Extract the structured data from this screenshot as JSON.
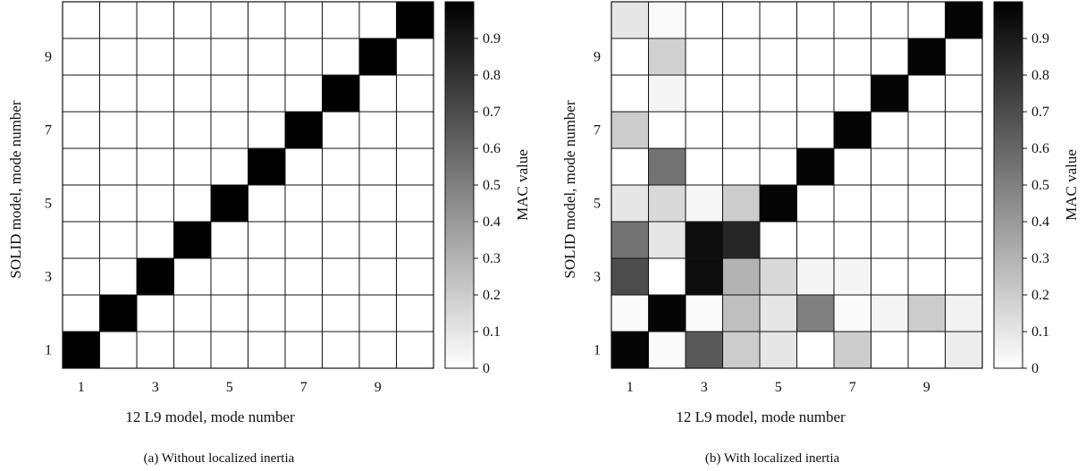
{
  "chart_data": [
    {
      "type": "heatmap",
      "caption": "(a)  Without localized inertia",
      "xlabel": "12 L9 model, mode number",
      "ylabel": "SOLID model, mode number",
      "colorbar_label": "MAC value",
      "x_tick_labels": [
        "1",
        "3",
        "5",
        "7",
        "9"
      ],
      "y_tick_labels": [
        "1",
        "3",
        "5",
        "7",
        "9"
      ],
      "colorbar_ticks": [
        "0",
        "0.1",
        "0.2",
        "0.3",
        "0.4",
        "0.5",
        "0.6",
        "0.7",
        "0.8",
        "0.9"
      ],
      "n_cols": 10,
      "n_rows": 10,
      "value_range": [
        0,
        1
      ],
      "colormap": "white-to-black",
      "values": [
        [
          1,
          0,
          0,
          0,
          0,
          0,
          0,
          0,
          0,
          0
        ],
        [
          0,
          1,
          0,
          0,
          0,
          0,
          0,
          0,
          0,
          0
        ],
        [
          0,
          0,
          1,
          0,
          0,
          0,
          0,
          0,
          0,
          0
        ],
        [
          0,
          0,
          0,
          1,
          0,
          0,
          0,
          0,
          0,
          0
        ],
        [
          0,
          0,
          0,
          0,
          1,
          0,
          0,
          0,
          0,
          0
        ],
        [
          0,
          0,
          0,
          0,
          0,
          1,
          0,
          0,
          0,
          0
        ],
        [
          0,
          0,
          0,
          0,
          0,
          0,
          1,
          0,
          0,
          0
        ],
        [
          0,
          0,
          0,
          0,
          0,
          0,
          0,
          1,
          0,
          0
        ],
        [
          0,
          0,
          0,
          0,
          0,
          0,
          0,
          0,
          1,
          0
        ],
        [
          0,
          0,
          0,
          0,
          0,
          0,
          0,
          0,
          0,
          1
        ]
      ]
    },
    {
      "type": "heatmap",
      "caption": "(b)  With localized inertia",
      "xlabel": "12 L9 model, mode number",
      "ylabel": "SOLID model, mode number",
      "colorbar_label": "MAC value",
      "x_tick_labels": [
        "1",
        "3",
        "5",
        "7",
        "9"
      ],
      "y_tick_labels": [
        "1",
        "3",
        "5",
        "7",
        "9"
      ],
      "colorbar_ticks": [
        "0",
        "0.1",
        "0.2",
        "0.3",
        "0.4",
        "0.5",
        "0.6",
        "0.7",
        "0.8",
        "0.9"
      ],
      "n_cols": 10,
      "n_rows": 10,
      "value_range": [
        0,
        1
      ],
      "colormap": "white-to-black",
      "values": [
        [
          0.98,
          0.02,
          0.65,
          0.2,
          0.1,
          0.0,
          0.2,
          0.0,
          0.0,
          0.07
        ],
        [
          0.02,
          0.98,
          0.02,
          0.25,
          0.1,
          0.5,
          0.02,
          0.04,
          0.2,
          0.05
        ],
        [
          0.7,
          0.0,
          0.95,
          0.3,
          0.15,
          0.04,
          0.04,
          0.0,
          0.0,
          0.0
        ],
        [
          0.55,
          0.1,
          0.95,
          0.85,
          0.0,
          0.0,
          0.0,
          0.0,
          0.0,
          0.0
        ],
        [
          0.1,
          0.15,
          0.03,
          0.2,
          0.98,
          0.0,
          0.0,
          0.0,
          0.0,
          0.0
        ],
        [
          0.0,
          0.55,
          0.0,
          0.0,
          0.0,
          0.98,
          0.0,
          0.0,
          0.0,
          0.0
        ],
        [
          0.2,
          0.0,
          0.0,
          0.0,
          0.0,
          0.0,
          0.98,
          0.0,
          0.0,
          0.0
        ],
        [
          0.0,
          0.04,
          0.0,
          0.0,
          0.0,
          0.0,
          0.0,
          0.98,
          0.0,
          0.0
        ],
        [
          0.0,
          0.18,
          0.0,
          0.0,
          0.0,
          0.0,
          0.0,
          0.0,
          0.98,
          0.0
        ],
        [
          0.1,
          0.02,
          0.0,
          0.0,
          0.0,
          0.0,
          0.0,
          0.0,
          0.0,
          0.98
        ]
      ]
    }
  ]
}
